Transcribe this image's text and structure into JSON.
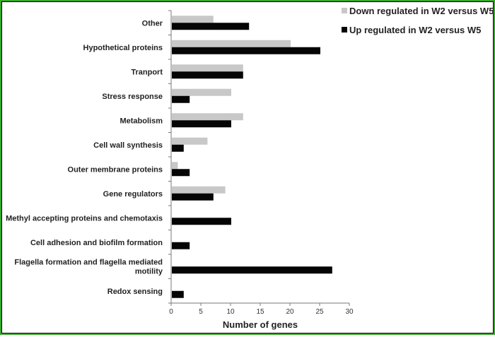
{
  "chart_data": {
    "type": "bar",
    "orientation": "horizontal",
    "categories": [
      "Other",
      "Hypothetical proteins",
      "Tranport",
      "Stress response",
      "Metabolism",
      "Cell wall synthesis",
      "Outer membrane proteins",
      "Gene regulators",
      "Methyl accepting proteins and chemotaxis",
      "Cell adhesion and biofilm formation",
      [
        "Flagella formation and flagella mediated",
        "motility"
      ],
      "Redox sensing"
    ],
    "series": [
      {
        "name": "Down regulated in  W2 versus W5",
        "color": "#c8c8c8",
        "values": [
          7,
          20,
          12,
          10,
          12,
          6,
          1,
          9,
          0,
          0,
          0,
          0
        ]
      },
      {
        "name": "Up regulated in  W2 versus W5",
        "color": "#050505",
        "values": [
          13,
          25,
          12,
          3,
          10,
          2,
          3,
          7,
          10,
          3,
          27,
          2
        ]
      }
    ],
    "xlabel": "Number of genes",
    "ylabel": "",
    "xlim": [
      0,
      30
    ],
    "xticks": [
      0,
      5,
      10,
      15,
      20,
      25,
      30
    ],
    "grid": false,
    "legend_position": "top-right"
  }
}
